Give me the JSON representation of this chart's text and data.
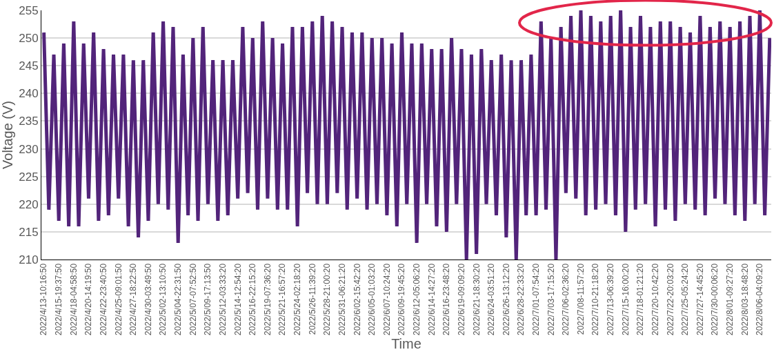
{
  "chart_data": {
    "type": "line",
    "xlabel": "Time",
    "ylabel": "Voltage (V)",
    "categories": [
      "2022/4/13-10:16:50",
      null,
      null,
      "2022/4/15-19:37:50",
      null,
      null,
      "2022/4/18-04:58:50",
      null,
      null,
      "2022/4/20-14:19:50",
      null,
      null,
      "2022/4/22-23:40:50",
      null,
      null,
      "2022/4/25-09:01:50",
      null,
      null,
      "2022/4/27-18:22:50",
      null,
      null,
      "2022/4/30-03:49:50",
      null,
      null,
      "2022/5/02-13:10:50",
      null,
      null,
      "2022/5/04-22:31:50",
      null,
      null,
      "2022/5/07-07:52:50",
      null,
      null,
      "2022/5/09-17:13:50",
      null,
      null,
      "2022/5/12-03:33:20",
      null,
      null,
      "2022/5/14-12:54:20",
      null,
      null,
      "2022/5/16-22:15:20",
      null,
      null,
      "2022/5/19-07:36:20",
      null,
      null,
      "2022/5/21-16:57:20",
      null,
      null,
      "2022/5/24-02:18:20",
      null,
      null,
      "2022/5/26-11:39:20",
      null,
      null,
      "2022/5/28-21:00:20",
      null,
      null,
      "2022/5/31-06:21:20",
      null,
      null,
      "2022/6/02-15:42:20",
      null,
      null,
      "2022/6/05-01:03:20",
      null,
      null,
      "2022/6/07-10:24:20",
      null,
      null,
      "2022/6/09-19:45:20",
      null,
      null,
      "2022/6/12-05:06:20",
      null,
      null,
      "2022/6/14-14:27:20",
      null,
      null,
      "2022/6/16-23:48:20",
      null,
      null,
      "2022/6/19-09:09:20",
      null,
      null,
      "2022/6/21-18:30:20",
      null,
      null,
      "2022/6/24-03:51:20",
      null,
      null,
      "2022/6/26-13:12:20",
      null,
      null,
      "2022/6/28-22:33:20",
      null,
      null,
      "2022/7/01-07:54:20",
      null,
      null,
      "2022/7/03-17:15:20",
      null,
      null,
      "2022/7/06-02:36:20",
      null,
      null,
      "2022/7/08-11:57:20",
      null,
      null,
      "2022/7/10-21:18:20",
      null,
      null,
      "2022/7/13-06:39:20",
      null,
      null,
      "2022/7/15-16:00:20",
      null,
      null,
      "2022/7/18-01:21:20",
      null,
      null,
      "2022/7/20-10:42:20",
      null,
      null,
      "2022/7/22-20:03:20",
      null,
      null,
      "2022/7/25-05:24:20",
      null,
      null,
      "2022/7/27-14:45:20",
      null,
      null,
      "2022/7/30-00:06:20",
      null,
      null,
      "2022/8/01-09:27:20",
      null,
      null,
      "2022/8/03-18:48:20",
      null,
      null,
      "2022/8/06-04:09:20",
      null,
      null
    ],
    "series": [
      {
        "color": "#52247a",
        "values": [
          251,
          219,
          247,
          217,
          249,
          216,
          253,
          216,
          249,
          221,
          251,
          217,
          248,
          218,
          247,
          221,
          247,
          216,
          246,
          214,
          246,
          217,
          251,
          220,
          253,
          219,
          252,
          213,
          247,
          218,
          250,
          217,
          252,
          220,
          246,
          217,
          246,
          218,
          246,
          221,
          252,
          222,
          250,
          219,
          253,
          221,
          250,
          219,
          249,
          219,
          252,
          216,
          252,
          222,
          253,
          220,
          254,
          220,
          253,
          222,
          252,
          219,
          251,
          221,
          251,
          219,
          250,
          220,
          250,
          218,
          249,
          216,
          251,
          220,
          249,
          213,
          249,
          220,
          248,
          216,
          248,
          215,
          250,
          220,
          248,
          210,
          247,
          211,
          248,
          220,
          246,
          218,
          247,
          214,
          246,
          210,
          246,
          218,
          247,
          218,
          253,
          219,
          250,
          210,
          252,
          222,
          254,
          221,
          255,
          218,
          254,
          219,
          253,
          220,
          254,
          218,
          255,
          215,
          252,
          219,
          254,
          220,
          252,
          216,
          253,
          219,
          253,
          217,
          252,
          220,
          251,
          219,
          254,
          218,
          252,
          221,
          253,
          220,
          252,
          218,
          253,
          217,
          254,
          220,
          255,
          218,
          250
        ]
      }
    ],
    "ylim": [
      210,
      255
    ],
    "yticks": [
      210,
      215,
      220,
      225,
      230,
      235,
      240,
      245,
      250,
      255
    ],
    "grid": "y",
    "line_style": "solid",
    "marker": "none"
  }
}
